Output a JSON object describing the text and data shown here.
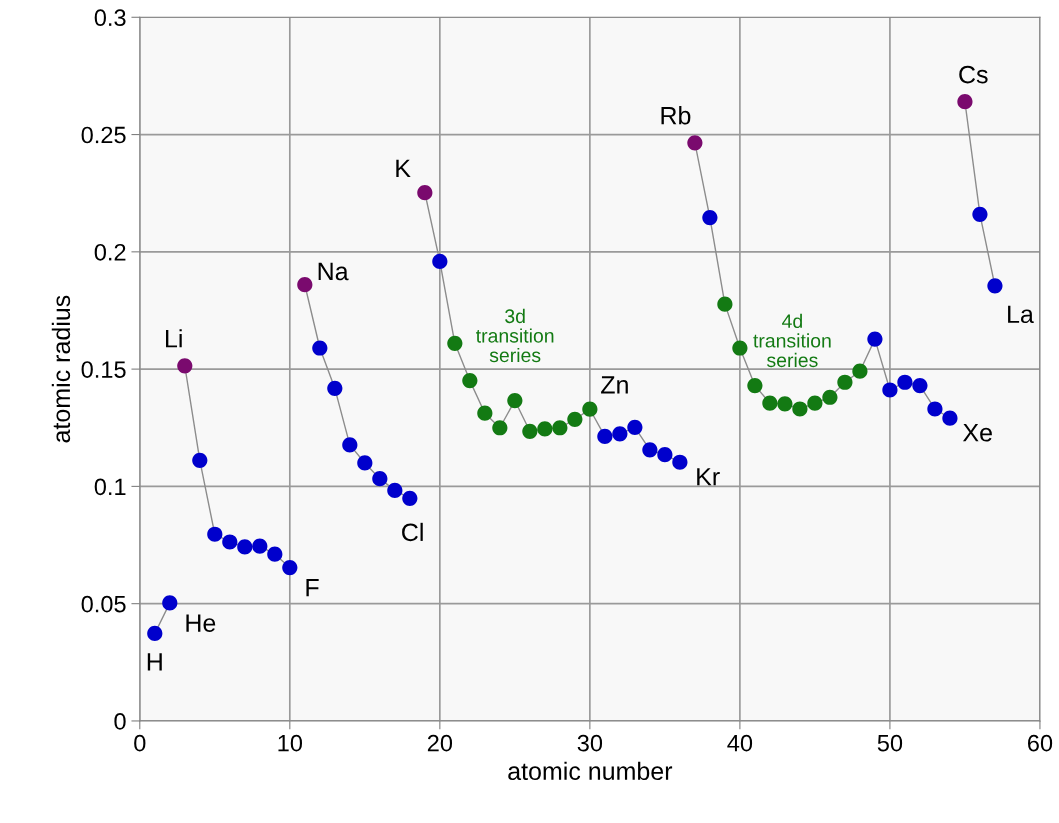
{
  "chart_data": {
    "type": "line",
    "xlabel": "atomic number",
    "ylabel": "atomic radius",
    "xlim": [
      0,
      60
    ],
    "ylim": [
      0,
      0.3
    ],
    "xticks": [
      0,
      10,
      20,
      30,
      40,
      50,
      60
    ],
    "yticks": [
      0,
      0.05,
      0.1,
      0.15,
      0.2,
      0.25,
      0.3
    ],
    "grid": true,
    "marker": "circle",
    "legend": false,
    "series": [
      {
        "color": "#8c8c8c",
        "x": [
          1,
          2
        ],
        "values": [
          0.0373,
          0.0503
        ],
        "colors": [
          "#0000cc",
          "#0000cc"
        ]
      },
      {
        "color": "#8c8c8c",
        "x": [
          3,
          4,
          5,
          6,
          7,
          8,
          9,
          10
        ],
        "values": [
          0.1514,
          0.1111,
          0.0796,
          0.0763,
          0.0742,
          0.0745,
          0.0711,
          0.0654
        ],
        "colors": [
          "#7a0a6e",
          "#0000cc",
          "#0000cc",
          "#0000cc",
          "#0000cc",
          "#0000cc",
          "#0000cc",
          "#0000cc"
        ]
      },
      {
        "color": "#8c8c8c",
        "x": [
          11,
          12,
          13,
          14,
          15,
          16,
          17,
          18
        ],
        "values": [
          0.186,
          0.159,
          0.1418,
          0.1177,
          0.11,
          0.1033,
          0.0983,
          0.0949
        ],
        "colors": [
          "#7a0a6e",
          "#0000cc",
          "#0000cc",
          "#0000cc",
          "#0000cc",
          "#0000cc",
          "#0000cc",
          "#0000cc"
        ]
      },
      {
        "color": "#8c8c8c",
        "x": [
          19,
          20,
          21,
          22,
          23,
          24,
          25,
          26,
          27,
          28,
          29,
          30,
          31,
          32,
          33,
          34,
          35,
          36
        ],
        "values": [
          0.2252,
          0.1959,
          0.161,
          0.1451,
          0.1312,
          0.125,
          0.1366,
          0.1235,
          0.1245,
          0.125,
          0.1286,
          0.1329,
          0.1213,
          0.1224,
          0.1252,
          0.1156,
          0.1135,
          0.1103
        ],
        "colors": [
          "#7a0a6e",
          "#0000cc",
          "#137a13",
          "#137a13",
          "#137a13",
          "#137a13",
          "#137a13",
          "#137a13",
          "#137a13",
          "#137a13",
          "#137a13",
          "#137a13",
          "#0000cc",
          "#0000cc",
          "#0000cc",
          "#0000cc",
          "#0000cc",
          "#0000cc"
        ]
      },
      {
        "color": "#8c8c8c",
        "x": [
          37,
          38,
          39,
          40,
          41,
          42,
          43,
          44,
          45,
          46,
          47,
          48,
          49,
          50,
          51,
          52,
          53,
          54
        ],
        "values": [
          0.2465,
          0.2146,
          0.1777,
          0.159,
          0.143,
          0.1355,
          0.1352,
          0.133,
          0.1355,
          0.138,
          0.1444,
          0.1491,
          0.1628,
          0.1411,
          0.1444,
          0.143,
          0.133,
          0.1291
        ],
        "colors": [
          "#7a0a6e",
          "#0000cc",
          "#137a13",
          "#137a13",
          "#137a13",
          "#137a13",
          "#137a13",
          "#137a13",
          "#137a13",
          "#137a13",
          "#137a13",
          "#137a13",
          "#0000cc",
          "#0000cc",
          "#0000cc",
          "#0000cc",
          "#0000cc",
          "#0000cc"
        ]
      },
      {
        "color": "#8c8c8c",
        "x": [
          55,
          56,
          57
        ],
        "values": [
          0.264,
          0.216,
          0.1855
        ],
        "colors": [
          "#7a0a6e",
          "#0000cc",
          "#0000cc"
        ]
      }
    ],
    "annotations": [
      {
        "text": "H",
        "x": 1,
        "y": 0.0373
      },
      {
        "text": "He",
        "x": 2,
        "y": 0.0503
      },
      {
        "text": "Li",
        "x": 3,
        "y": 0.1514
      },
      {
        "text": "F",
        "x": 10,
        "y": 0.0654
      },
      {
        "text": "Na",
        "x": 11,
        "y": 0.186
      },
      {
        "text": "Cl",
        "x": 18,
        "y": 0.0949
      },
      {
        "text": "K",
        "x": 19,
        "y": 0.2252
      },
      {
        "text": "Zn",
        "x": 30,
        "y": 0.1329
      },
      {
        "text": "Kr",
        "x": 36,
        "y": 0.1103
      },
      {
        "text": "Rb",
        "x": 37,
        "y": 0.2465
      },
      {
        "text": "Xe",
        "x": 54,
        "y": 0.1291
      },
      {
        "text": "Cs",
        "x": 55,
        "y": 0.264
      },
      {
        "text": "La",
        "x": 57,
        "y": 0.1855
      },
      "3d\ntransition\nseries",
      "4d\ntransition\nseries"
    ]
  }
}
